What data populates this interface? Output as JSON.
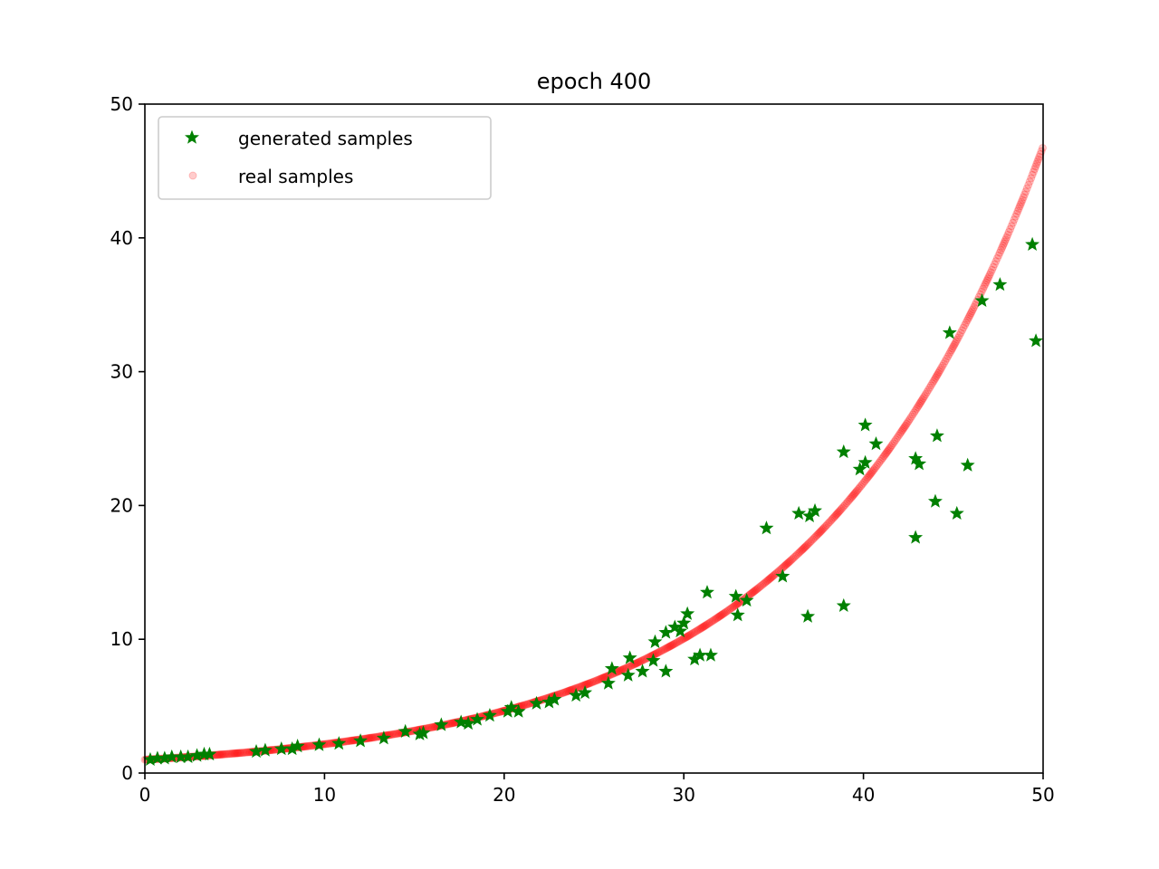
{
  "chart_data": {
    "type": "scatter",
    "title": "epoch 400",
    "xlabel": "",
    "ylabel": "",
    "xlim": [
      0,
      50
    ],
    "ylim": [
      0,
      50
    ],
    "xticks": [
      0,
      10,
      20,
      30,
      40,
      50
    ],
    "yticks": [
      0,
      10,
      20,
      30,
      40,
      50
    ],
    "grid": false,
    "legend_position": "top-left",
    "series": [
      {
        "name": "generated samples",
        "color": "#008000",
        "marker": "star",
        "points": [
          [
            0.3,
            1.0
          ],
          [
            0.7,
            1.1
          ],
          [
            1.1,
            1.1
          ],
          [
            1.5,
            1.2
          ],
          [
            2.0,
            1.2
          ],
          [
            2.4,
            1.2
          ],
          [
            2.9,
            1.3
          ],
          [
            3.3,
            1.4
          ],
          [
            3.6,
            1.4
          ],
          [
            6.2,
            1.6
          ],
          [
            6.7,
            1.7
          ],
          [
            7.6,
            1.8
          ],
          [
            8.2,
            1.8
          ],
          [
            8.5,
            2.0
          ],
          [
            9.7,
            2.1
          ],
          [
            10.8,
            2.2
          ],
          [
            12.0,
            2.4
          ],
          [
            13.3,
            2.6
          ],
          [
            14.5,
            3.1
          ],
          [
            15.3,
            2.9
          ],
          [
            15.5,
            3.0
          ],
          [
            16.5,
            3.6
          ],
          [
            17.6,
            3.8
          ],
          [
            18.0,
            3.7
          ],
          [
            18.5,
            4.0
          ],
          [
            19.2,
            4.3
          ],
          [
            20.2,
            4.6
          ],
          [
            20.4,
            4.9
          ],
          [
            20.8,
            4.6
          ],
          [
            21.8,
            5.2
          ],
          [
            22.5,
            5.3
          ],
          [
            22.8,
            5.5
          ],
          [
            24.0,
            5.8
          ],
          [
            24.5,
            6.0
          ],
          [
            25.8,
            6.7
          ],
          [
            26.0,
            7.8
          ],
          [
            26.9,
            7.3
          ],
          [
            27.0,
            8.6
          ],
          [
            27.7,
            7.6
          ],
          [
            28.3,
            8.4
          ],
          [
            28.4,
            9.8
          ],
          [
            29.0,
            7.6
          ],
          [
            29.0,
            10.5
          ],
          [
            29.5,
            10.9
          ],
          [
            29.8,
            10.6
          ],
          [
            30.0,
            11.2
          ],
          [
            30.2,
            11.9
          ],
          [
            30.6,
            8.5
          ],
          [
            30.9,
            8.8
          ],
          [
            31.3,
            13.5
          ],
          [
            31.5,
            8.8
          ],
          [
            32.9,
            13.2
          ],
          [
            33.0,
            11.8
          ],
          [
            33.5,
            12.9
          ],
          [
            34.6,
            18.3
          ],
          [
            35.5,
            14.7
          ],
          [
            36.4,
            19.4
          ],
          [
            36.9,
            11.7
          ],
          [
            37.0,
            19.2
          ],
          [
            37.3,
            19.6
          ],
          [
            38.9,
            24.0
          ],
          [
            38.9,
            12.5
          ],
          [
            39.8,
            22.7
          ],
          [
            40.1,
            26.0
          ],
          [
            40.1,
            23.2
          ],
          [
            40.7,
            24.6
          ],
          [
            42.9,
            23.5
          ],
          [
            42.9,
            17.6
          ],
          [
            43.1,
            23.1
          ],
          [
            44.0,
            20.3
          ],
          [
            44.1,
            25.2
          ],
          [
            44.8,
            32.9
          ],
          [
            45.2,
            19.4
          ],
          [
            45.8,
            23.0
          ],
          [
            46.6,
            35.3
          ],
          [
            47.6,
            36.5
          ],
          [
            49.4,
            39.5
          ],
          [
            49.6,
            32.3
          ]
        ]
      },
      {
        "name": "real samples",
        "color": "#ff0000",
        "marker": "dot",
        "opacity": 0.2,
        "function": "y = exp(x/13)",
        "x_range": [
          0,
          50
        ]
      }
    ]
  }
}
